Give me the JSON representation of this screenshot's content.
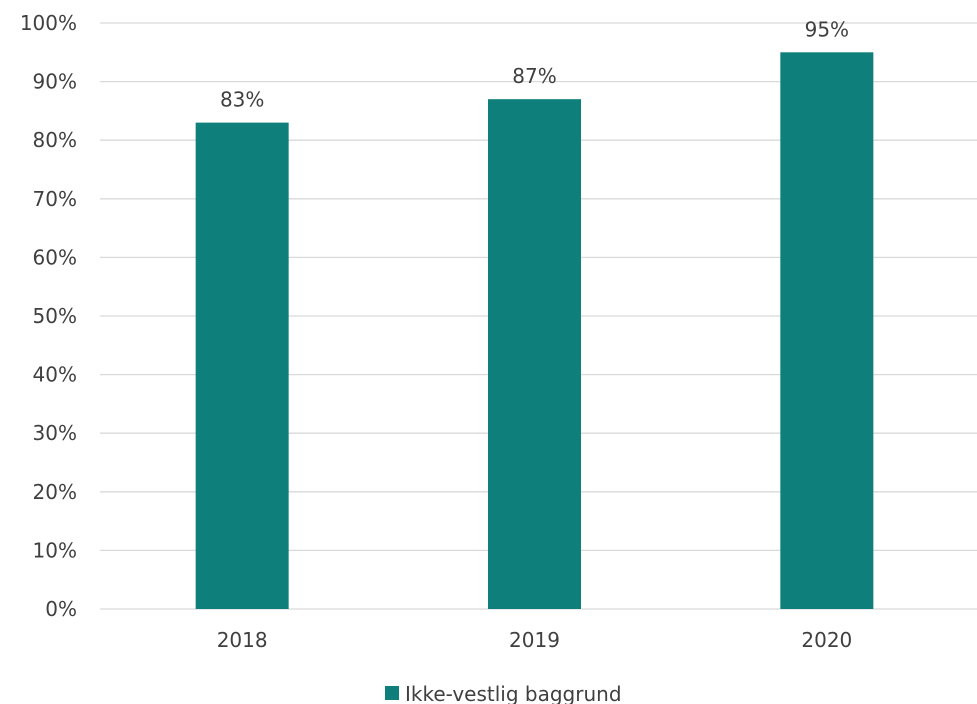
{
  "chart_data": {
    "type": "bar",
    "categories": [
      "2018",
      "2019",
      "2020"
    ],
    "series": [
      {
        "name": "Ikke-vestlig baggrund",
        "values": [
          83,
          87,
          95
        ],
        "color": "#0e7f7b"
      }
    ],
    "data_labels": [
      "83%",
      "87%",
      "95%"
    ],
    "ylim": [
      0,
      100
    ],
    "yticks": [
      0,
      10,
      20,
      30,
      40,
      50,
      60,
      70,
      80,
      90,
      100
    ],
    "ytick_labels": [
      "0%",
      "10%",
      "20%",
      "30%",
      "40%",
      "50%",
      "60%",
      "70%",
      "80%",
      "90%",
      "100%"
    ],
    "grid": true,
    "legend": {
      "position": "bottom",
      "entries": [
        "Ikke-vestlig baggrund"
      ]
    }
  }
}
